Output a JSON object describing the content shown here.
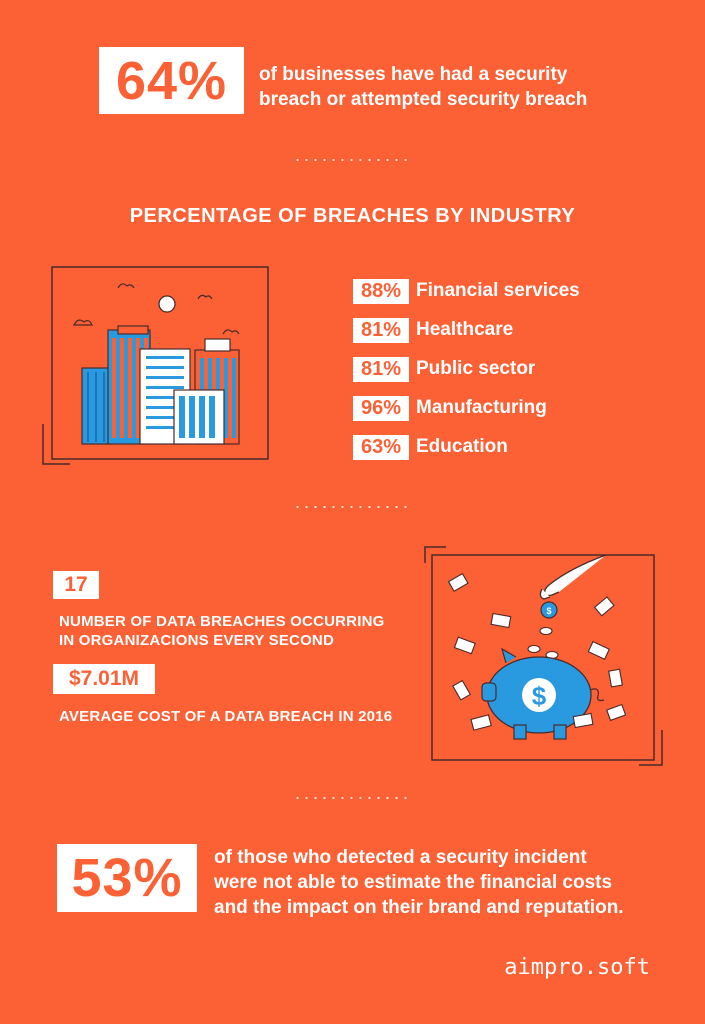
{
  "top_stat": {
    "value": "64%",
    "text_line1": "of businesses have had a security",
    "text_line2": "breach or attempted security breach"
  },
  "industry_section": {
    "title": "PERCENTAGE OF BREACHES BY INDUSTRY",
    "items": [
      {
        "pct": "88%",
        "label": "Financial services"
      },
      {
        "pct": "81%",
        "label": "Healthcare"
      },
      {
        "pct": "81%",
        "label": "Public sector"
      },
      {
        "pct": "96%",
        "label": "Manufacturing"
      },
      {
        "pct": "63%",
        "label": "Education"
      }
    ]
  },
  "breach_stats": {
    "count_value": "17",
    "count_line1": "NUMBER OF DATA BREACHES OCCURRING",
    "count_line2": "IN ORGANIZACIONS EVERY SECOND",
    "cost_value": "$7.01M",
    "cost_label": "AVERAGE COST OF A DATA BREACH IN 2016"
  },
  "bottom_stat": {
    "value": "53%",
    "text_line1": "of those who detected a security incident",
    "text_line2": "were not  able to estimate the financial costs",
    "text_line3": "and the impact on their brand and reputation."
  },
  "brand": "aimpro.soft",
  "colors": {
    "background": "#fb6135",
    "white": "#ffffff",
    "building_blue": "#2a9ae0",
    "outline": "#4a2a2a"
  },
  "icons": [
    "city-buildings-illustration",
    "piggy-bank-illustration",
    "dollar-coin-icon",
    "money-bill-icon"
  ]
}
